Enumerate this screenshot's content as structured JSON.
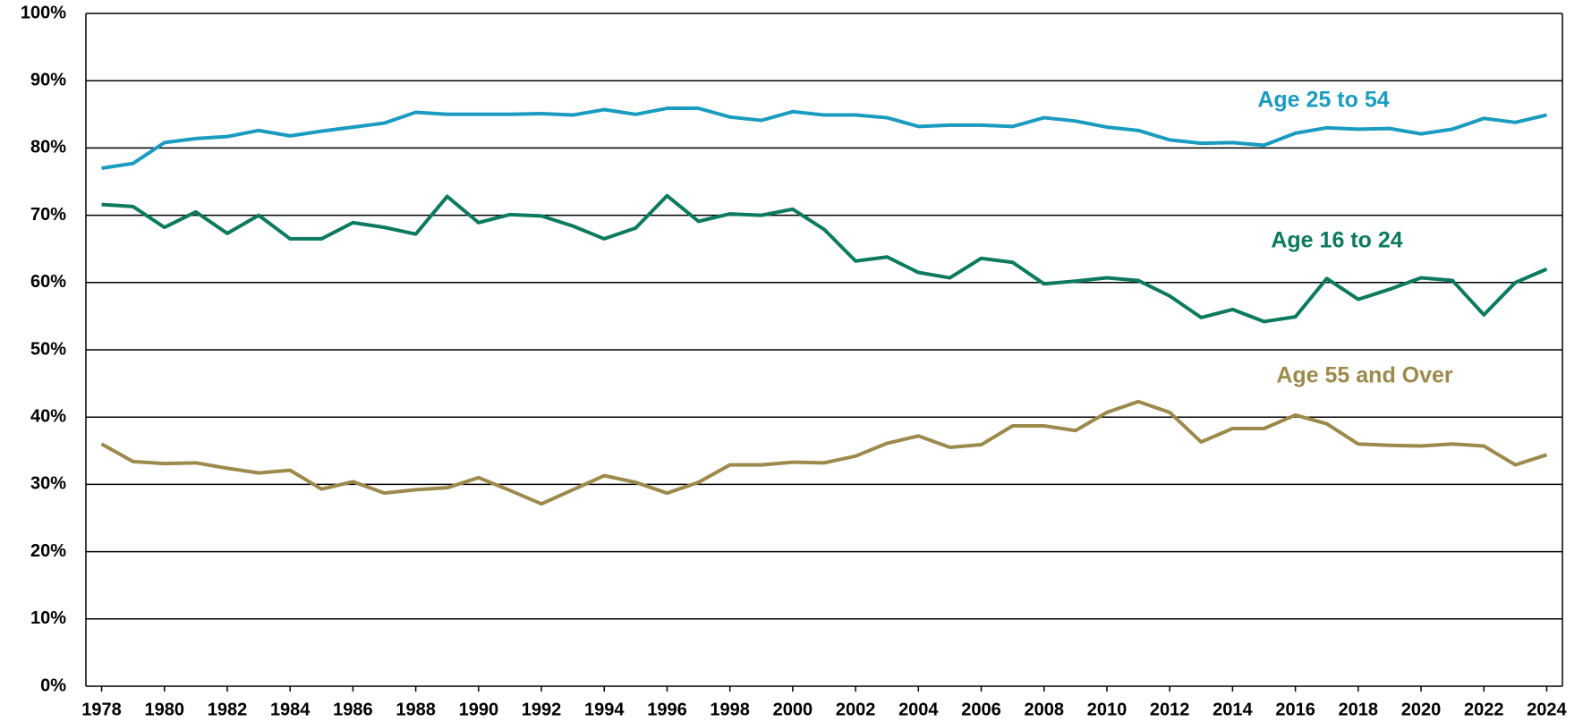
{
  "chart_data": {
    "type": "line",
    "x": [
      1978,
      1979,
      1980,
      1981,
      1982,
      1983,
      1984,
      1985,
      1986,
      1987,
      1988,
      1989,
      1990,
      1991,
      1992,
      1993,
      1994,
      1995,
      1996,
      1997,
      1998,
      1999,
      2000,
      2001,
      2002,
      2003,
      2004,
      2005,
      2006,
      2007,
      2008,
      2009,
      2010,
      2011,
      2012,
      2013,
      2014,
      2015,
      2016,
      2017,
      2018,
      2019,
      2020,
      2021,
      2022,
      2023,
      2024
    ],
    "series": [
      {
        "name": "Age 25 to 54",
        "color": "#1a9bc0",
        "values": [
          77,
          77.7,
          80.8,
          81.4,
          81.7,
          82.6,
          81.8,
          82.5,
          83.1,
          83.7,
          85.3,
          85,
          85,
          85,
          85.1,
          84.9,
          85.7,
          85,
          85.9,
          85.9,
          84.6,
          84.1,
          85.4,
          84.9,
          84.9,
          84.5,
          83.2,
          83.4,
          83.4,
          83.2,
          84.5,
          84,
          83.1,
          82.6,
          81.2,
          80.7,
          80.8,
          80.4,
          82.2,
          83,
          82.8,
          82.9,
          82.1,
          82.8,
          84.4,
          83.8,
          84.9
        ]
      },
      {
        "name": "Age 16 to 24",
        "color": "#0b7a5e",
        "values": [
          71.6,
          71.3,
          68.2,
          70.5,
          67.3,
          70,
          66.5,
          66.5,
          68.9,
          68.2,
          67.2,
          72.8,
          68.9,
          70.1,
          69.9,
          68.4,
          66.5,
          68.1,
          72.9,
          69.1,
          70.2,
          70,
          70.9,
          67.9,
          63.2,
          63.8,
          61.5,
          60.7,
          63.6,
          63,
          59.8,
          60.2,
          60.7,
          60.3,
          58,
          54.8,
          56,
          54.2,
          54.9,
          60.6,
          57.5,
          59,
          60.7,
          60.3,
          55.2,
          60,
          62
        ]
      },
      {
        "name": "Age 55 and Over",
        "color": "#9c8a4c",
        "values": [
          36,
          33.4,
          33.1,
          33.2,
          32.4,
          31.7,
          32.1,
          29.3,
          30.4,
          28.7,
          29.2,
          29.5,
          31,
          29.1,
          27.1,
          29.2,
          31.3,
          30.3,
          28.7,
          30.3,
          32.9,
          32.9,
          33.3,
          33.2,
          34.2,
          36.1,
          37.2,
          35.5,
          35.9,
          38.7,
          38.7,
          38,
          40.7,
          42.3,
          40.7,
          36.3,
          38.3,
          38.3,
          40.3,
          39,
          36,
          35.8,
          35.7,
          36,
          35.7,
          32.9,
          34.4
        ]
      }
    ],
    "xlim": [
      1977.5,
      2024.5
    ],
    "xticks": [
      1978,
      1980,
      1982,
      1984,
      1986,
      1988,
      1990,
      1992,
      1994,
      1996,
      1998,
      2000,
      2002,
      2004,
      2006,
      2008,
      2010,
      2012,
      2014,
      2016,
      2018,
      2020,
      2022,
      2024
    ],
    "ylim": [
      0,
      100
    ],
    "yticks": [
      {
        "value": 0,
        "label": "0%"
      },
      {
        "value": 10,
        "label": "10%"
      },
      {
        "value": 20,
        "label": "20%"
      },
      {
        "value": 30,
        "label": "30%"
      },
      {
        "value": 40,
        "label": "40%"
      },
      {
        "value": 50,
        "label": "50%"
      },
      {
        "value": 60,
        "label": "60%"
      },
      {
        "value": 70,
        "label": "70%"
      },
      {
        "value": 80,
        "label": "80%"
      },
      {
        "value": 90,
        "label": "90%"
      },
      {
        "value": 100,
        "label": "100%"
      }
    ],
    "grid": true
  }
}
